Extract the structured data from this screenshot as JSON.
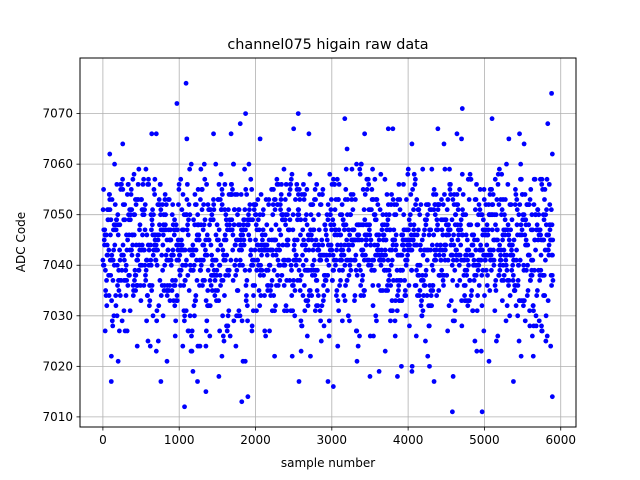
{
  "chart_data": {
    "type": "scatter",
    "title": "channel075 higain raw data",
    "xlabel": "sample number",
    "ylabel": "ADC Code",
    "xlim": [
      -300,
      6200
    ],
    "ylim": [
      7008,
      7081
    ],
    "xticks": [
      0,
      1000,
      2000,
      3000,
      4000,
      5000,
      6000
    ],
    "yticks": [
      7010,
      7020,
      7030,
      7040,
      7050,
      7060,
      7070
    ],
    "xtick_labels": [
      "0",
      "1000",
      "2000",
      "3000",
      "4000",
      "5000",
      "6000"
    ],
    "ytick_labels": [
      "7010",
      "7020",
      "7030",
      "7040",
      "7050",
      "7060",
      "7070"
    ],
    "grid": true,
    "marker_color": "#0000ff",
    "n_samples": 5900,
    "value_range": [
      7011,
      7076
    ],
    "dense_band": [
      7020,
      7060
    ],
    "series": [
      {
        "points": [
          [
            1070,
            7012
          ],
          [
            4580,
            7011
          ],
          [
            4970,
            7011
          ],
          [
            110,
            7017
          ],
          [
            760,
            7017
          ],
          [
            1090,
            7076
          ],
          [
            970,
            7072
          ],
          [
            1820,
            7013
          ],
          [
            1900,
            7014
          ],
          [
            5890,
            7014
          ],
          [
            5880,
            7074
          ],
          [
            4710,
            7071
          ],
          [
            1870,
            7070
          ],
          [
            2560,
            7070
          ],
          [
            3170,
            7069
          ],
          [
            5100,
            7069
          ],
          [
            4590,
            7018
          ],
          [
            5380,
            7017
          ],
          [
            3020,
            7016
          ],
          [
            1520,
            7018
          ],
          [
            1240,
            7017
          ],
          [
            1350,
            7015
          ],
          [
            4340,
            7017
          ],
          [
            3500,
            7018
          ],
          [
            2950,
            7017
          ],
          [
            2570,
            7017
          ],
          [
            840,
            7021
          ],
          [
            700,
            7023
          ],
          [
            1180,
            7019
          ],
          [
            3860,
            7018
          ],
          [
            4050,
            7019
          ],
          [
            5830,
            7068
          ],
          [
            1800,
            7068
          ],
          [
            4390,
            7067
          ],
          [
            3740,
            7067
          ],
          [
            3800,
            7067
          ],
          [
            1450,
            7066
          ],
          [
            640,
            7066
          ],
          [
            700,
            7066
          ],
          [
            2500,
            7067
          ],
          [
            2700,
            7066
          ],
          [
            4640,
            7066
          ],
          [
            4700,
            7065
          ],
          [
            5320,
            7065
          ],
          [
            5460,
            7066
          ],
          [
            260,
            7064
          ],
          [
            1100,
            7065
          ],
          [
            1680,
            7066
          ],
          [
            2060,
            7065
          ],
          [
            3430,
            7066
          ],
          [
            4050,
            7064
          ],
          [
            5520,
            7064
          ],
          [
            5890,
            7062
          ],
          [
            4470,
            7064
          ],
          [
            90,
            7062
          ],
          [
            3200,
            7063
          ],
          [
            3700,
            7023
          ],
          [
            4280,
            7020
          ],
          [
            5060,
            7021
          ],
          [
            5640,
            7022
          ],
          [
            200,
            7021
          ],
          [
            450,
            7024
          ],
          [
            1560,
            7022
          ],
          [
            2250,
            7022
          ],
          [
            2720,
            7022
          ],
          [
            3330,
            7021
          ],
          [
            3620,
            7019
          ],
          [
            4900,
            7023
          ],
          [
            5750,
            7027
          ]
        ]
      }
    ]
  }
}
